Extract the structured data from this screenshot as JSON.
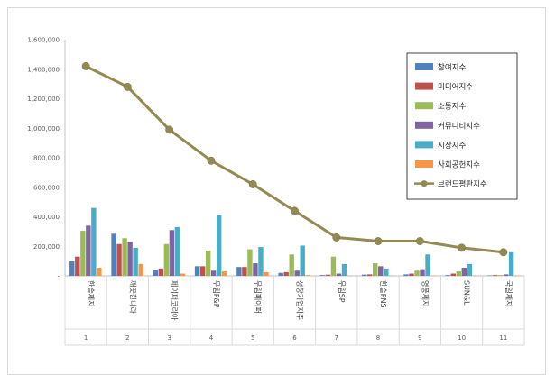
{
  "chart_data": {
    "type": "bar",
    "title": "",
    "xlabel": "",
    "ylabel": "",
    "ylim": [
      0,
      1600000
    ],
    "yticks": [
      0,
      200000,
      400000,
      600000,
      800000,
      1000000,
      1200000,
      1400000,
      1600000
    ],
    "ytick_labels": [
      "-",
      "200,000",
      "400,000",
      "600,000",
      "800,000",
      "1,000,000",
      "1,200,000",
      "1,400,000",
      "1,600,000"
    ],
    "grid": true,
    "legend_position": "top-right",
    "index_labels": [
      "1",
      "2",
      "3",
      "4",
      "5",
      "6",
      "7",
      "8",
      "9",
      "10",
      "11"
    ],
    "categories": [
      "한솔제지",
      "깨끗한나라",
      "페이퍼코리아",
      "무림P&P",
      "무림페이퍼",
      "성창기업지주",
      "무림SP",
      "한솔PNS",
      "영풍제지",
      "SUN&L",
      "국일제지"
    ],
    "series": [
      {
        "name": "참여지수",
        "type": "bar",
        "color": "#4f81bd",
        "values": [
          100000,
          285000,
          40000,
          65000,
          60000,
          20000,
          5000,
          8000,
          10000,
          5000,
          3000
        ]
      },
      {
        "name": "미디어지수",
        "type": "bar",
        "color": "#c0504d",
        "values": [
          130000,
          215000,
          50000,
          65000,
          60000,
          25000,
          8000,
          10000,
          15000,
          15000,
          5000
        ]
      },
      {
        "name": "소통지수",
        "type": "bar",
        "color": "#9bbb59",
        "values": [
          305000,
          255000,
          215000,
          170000,
          180000,
          145000,
          130000,
          85000,
          35000,
          30000,
          5000
        ]
      },
      {
        "name": "커뮤니티지수",
        "type": "bar",
        "color": "#8064a2",
        "values": [
          340000,
          230000,
          310000,
          35000,
          85000,
          35000,
          15000,
          65000,
          45000,
          55000,
          10000
        ]
      },
      {
        "name": "시장지수",
        "type": "bar",
        "color": "#4bacc6",
        "values": [
          460000,
          190000,
          330000,
          410000,
          195000,
          205000,
          80000,
          50000,
          145000,
          80000,
          160000
        ]
      },
      {
        "name": "사회공헌지수",
        "type": "bar",
        "color": "#f79646",
        "values": [
          55000,
          80000,
          15000,
          30000,
          25000,
          5000,
          2000,
          2000,
          2000,
          2000,
          2000
        ]
      },
      {
        "name": "브랜드평판지수",
        "type": "line",
        "color": "#938953",
        "values": [
          1420000,
          1280000,
          990000,
          780000,
          620000,
          440000,
          260000,
          235000,
          235000,
          190000,
          160000
        ]
      }
    ]
  }
}
